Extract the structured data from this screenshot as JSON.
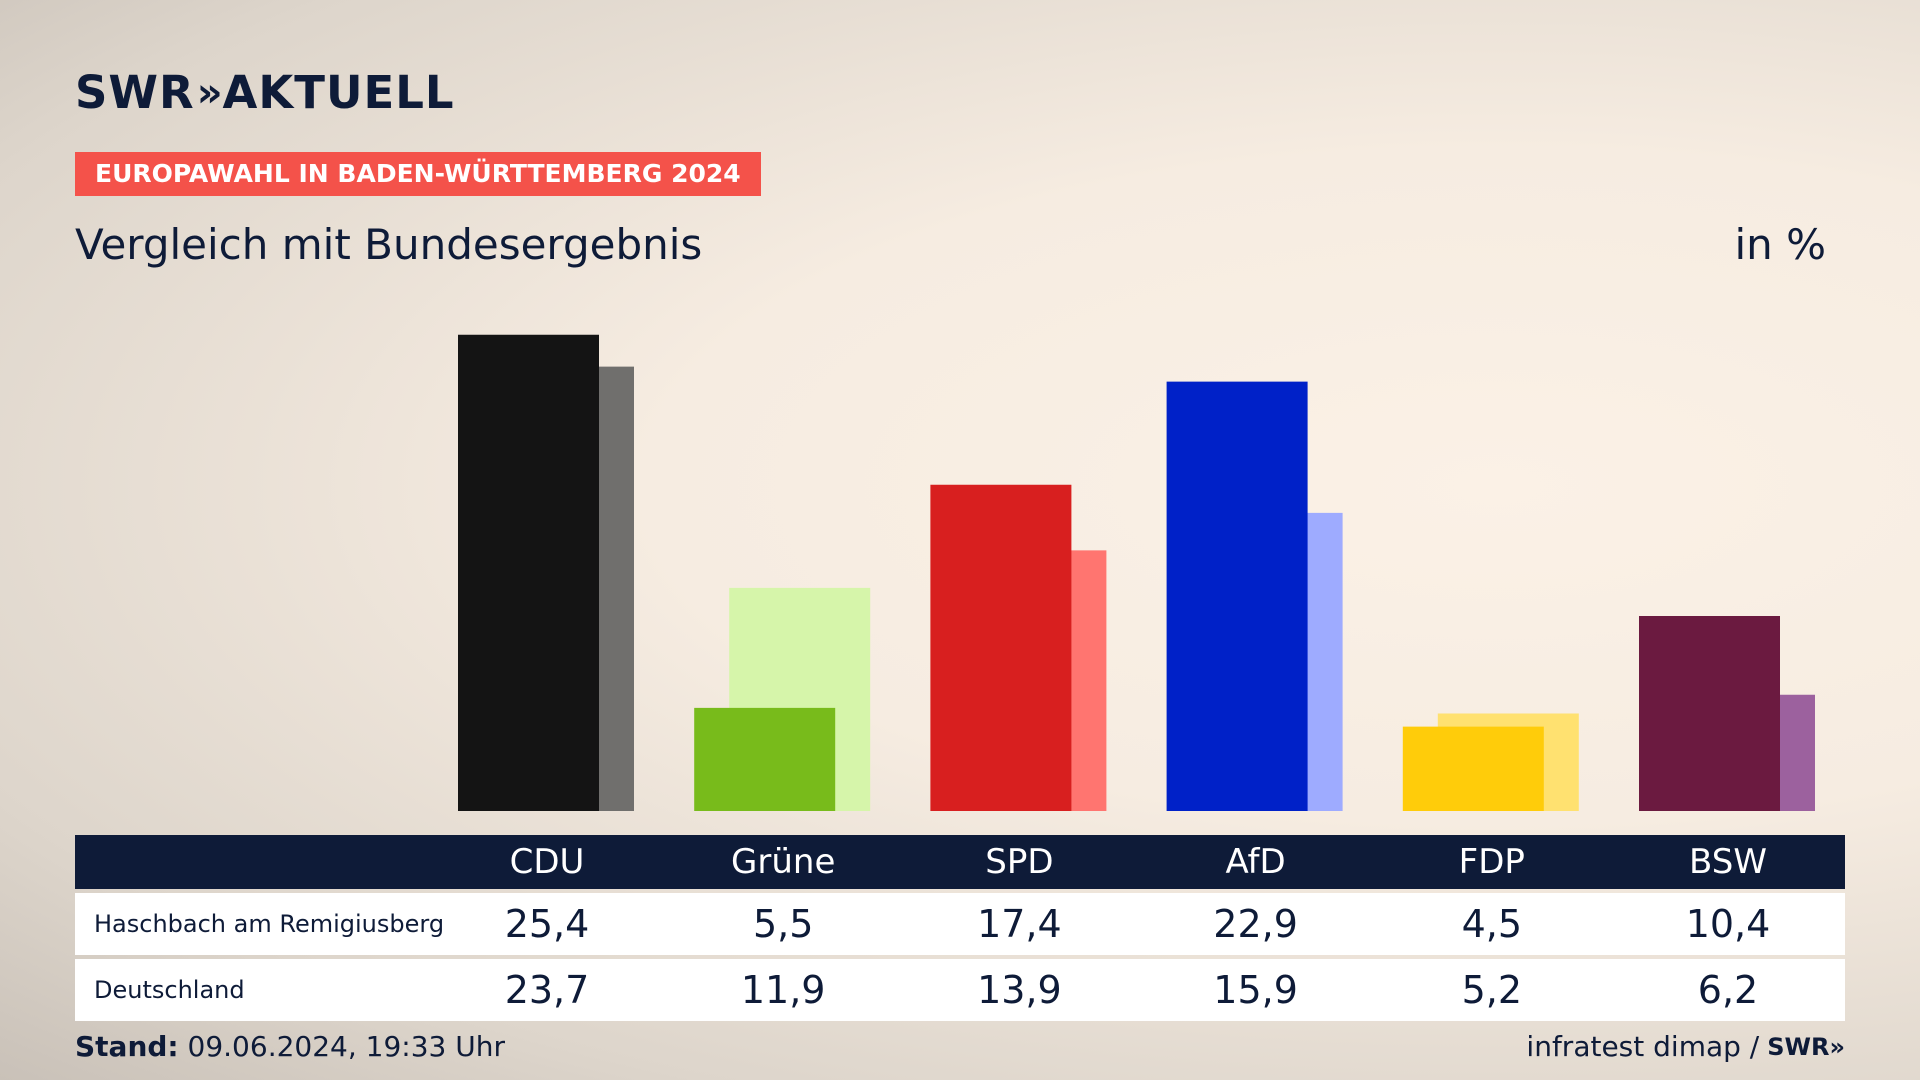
{
  "logo": {
    "text": "SWR",
    "chevrons": "»",
    "suffix": "AKTUELL"
  },
  "badge": "EUROPAWAHL IN BADEN-WÜRTTEMBERG 2024",
  "subtitle": "Vergleich mit Bundesergebnis",
  "unit": "in %",
  "footer": {
    "stand_label": "Stand:",
    "stand_value": "09.06.2024, 19:33 Uhr",
    "source": "infratest dimap /",
    "source_logo": "SWR»"
  },
  "chart_data": {
    "type": "bar",
    "categories": [
      "CDU",
      "Grüne",
      "SPD",
      "AfD",
      "FDP",
      "BSW"
    ],
    "series": [
      {
        "name": "Haschbach am Remigiusberg",
        "values": [
          25.4,
          5.5,
          17.4,
          22.9,
          4.5,
          10.4
        ],
        "display": [
          "25,4",
          "5,5",
          "17,4",
          "22,9",
          "4,5",
          "10,4"
        ],
        "colors": [
          "#141414",
          "#78bb1b",
          "#d81f1f",
          "#0021c8",
          "#ffcc0a",
          "#6b1a40"
        ]
      },
      {
        "name": "Deutschland",
        "values": [
          23.7,
          11.9,
          13.9,
          15.9,
          5.2,
          6.2
        ],
        "display": [
          "23,7",
          "11,9",
          "13,9",
          "15,9",
          "5,2",
          "6,2"
        ],
        "colors": [
          "#706f6d",
          "#d6f5aa",
          "#ff7570",
          "#9eabff",
          "#ffe170",
          "#9c619e"
        ]
      }
    ],
    "legend": "table"
  }
}
